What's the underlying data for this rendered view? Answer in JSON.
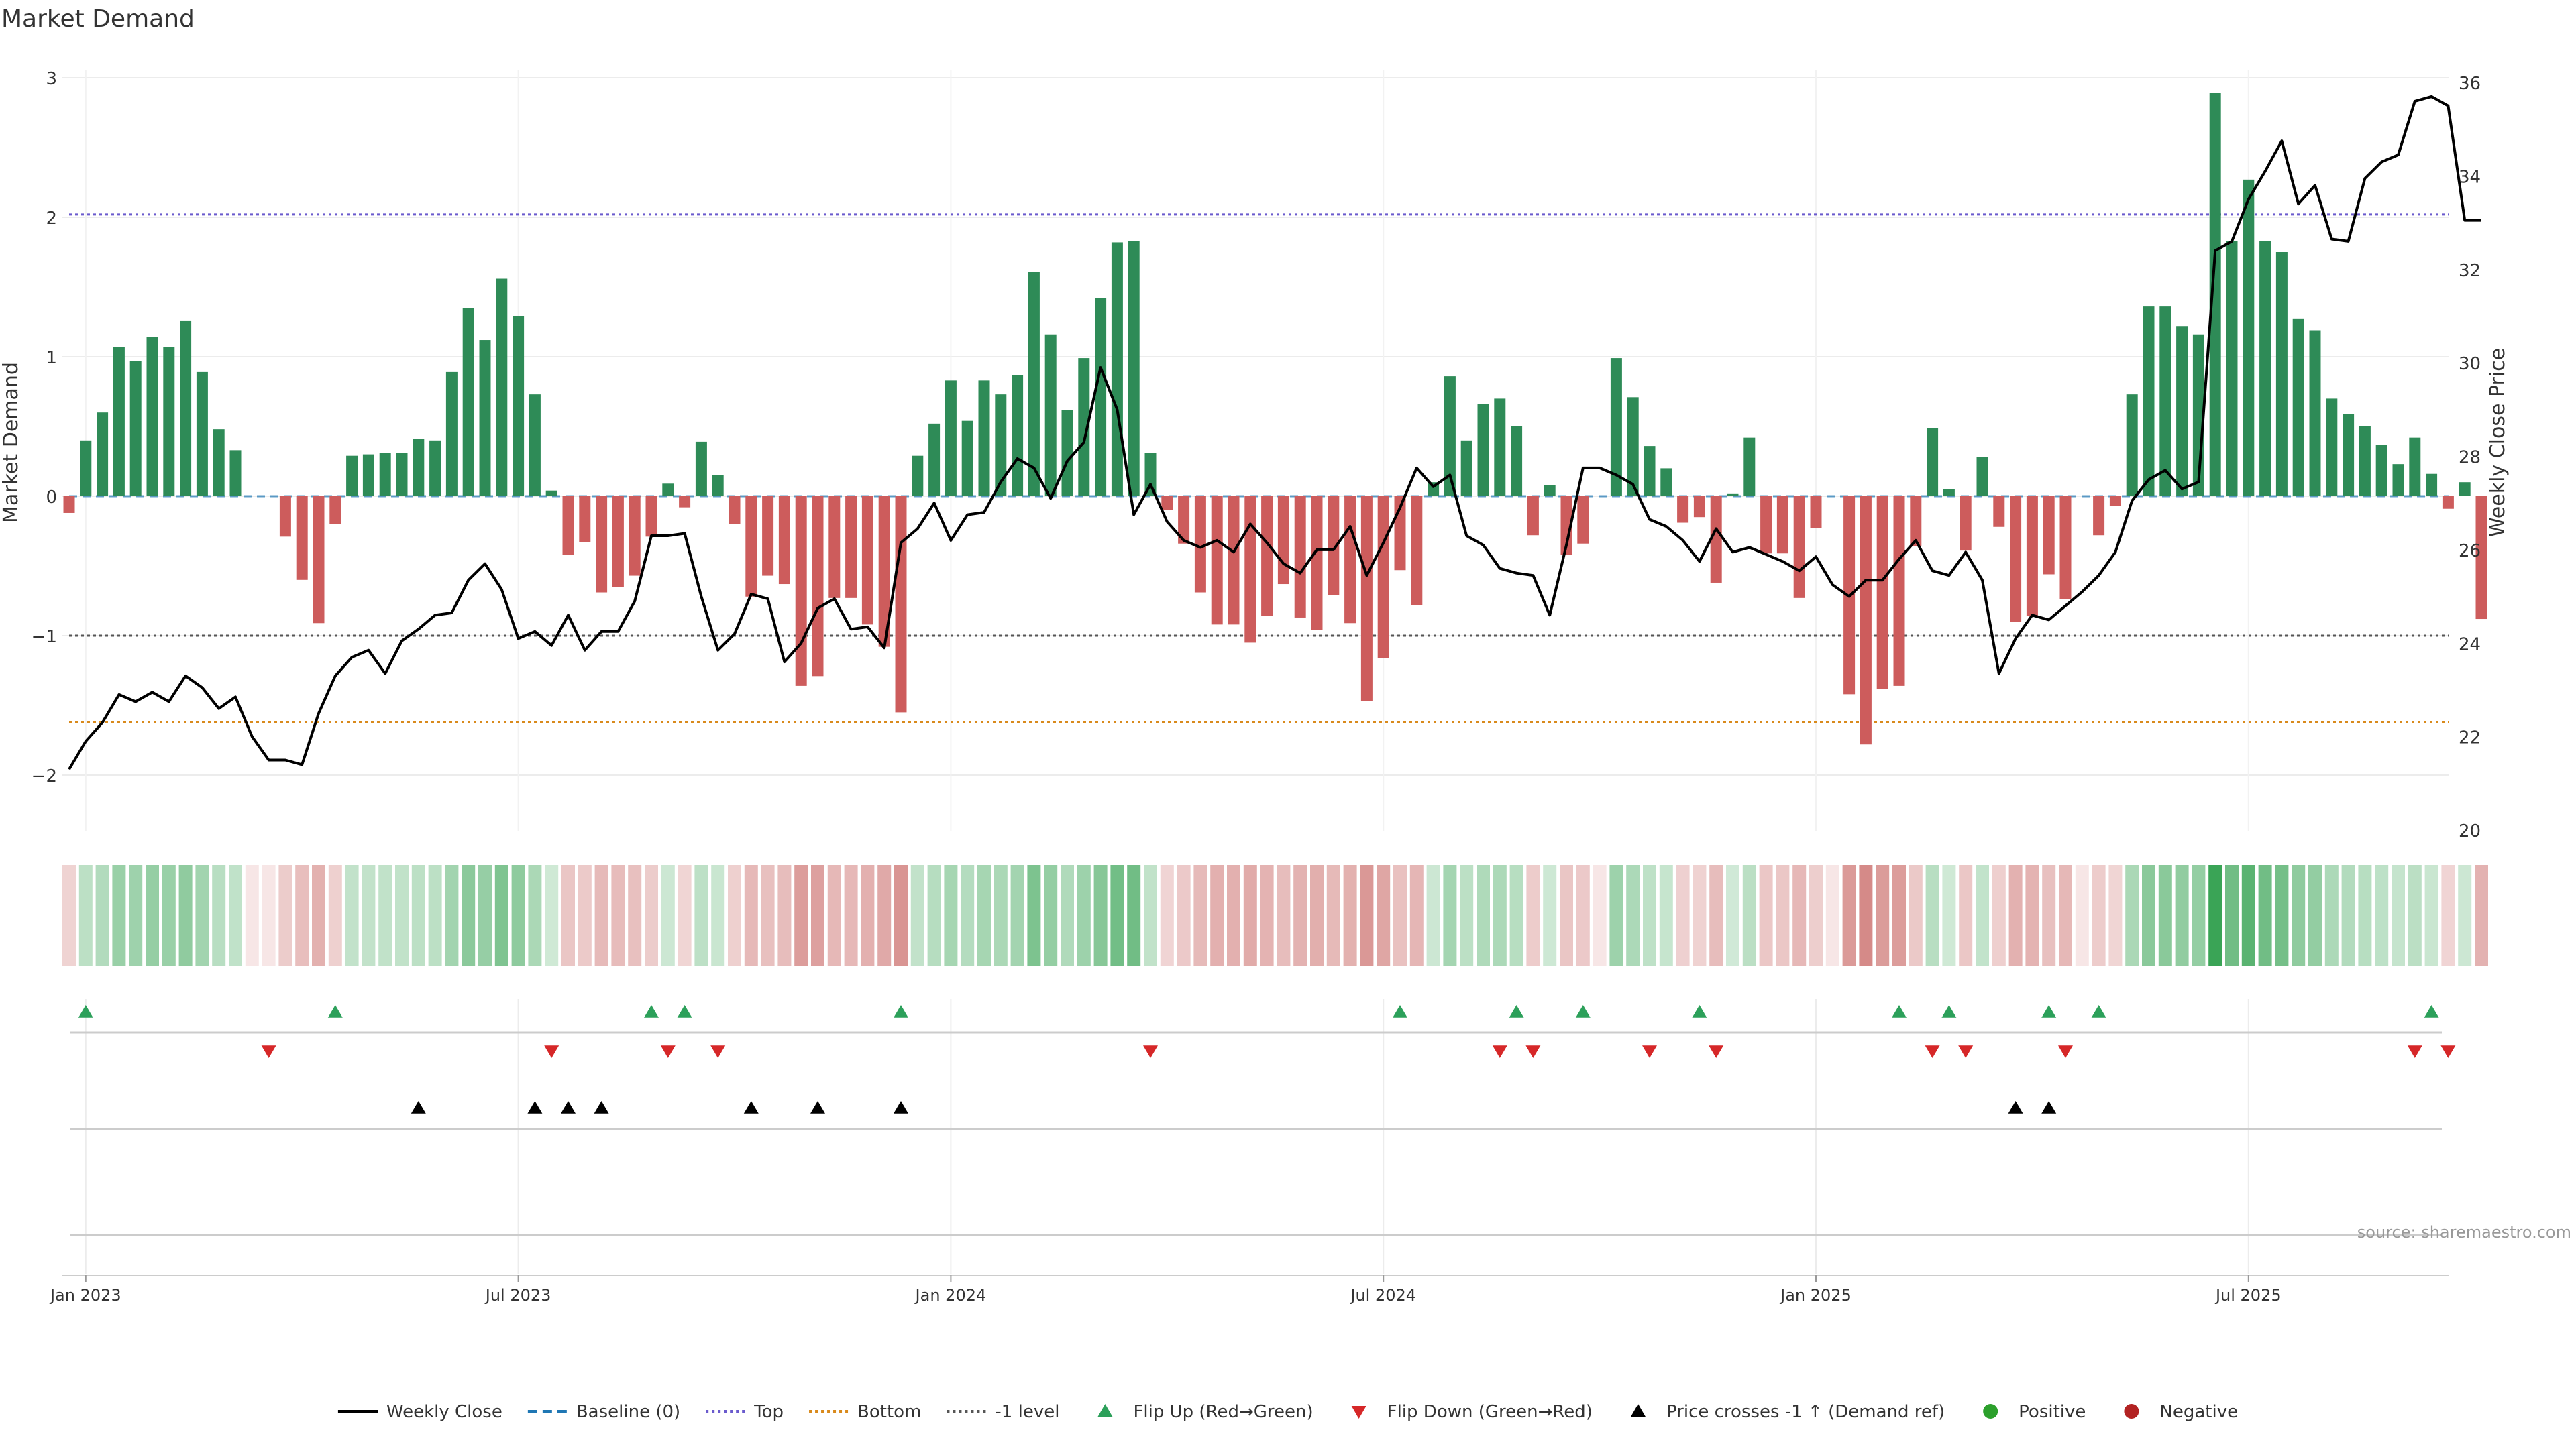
{
  "chart_data": {
    "type": "bar+line",
    "title": "Market Demand",
    "ylabel_left": "Market Demand",
    "ylabel_right": "Weekly Close Price",
    "ylim_left": [
      -2.4,
      3.0
    ],
    "ylim_right": [
      20,
      36
    ],
    "yticks_left": [
      3,
      2,
      1,
      0,
      -1,
      -2
    ],
    "yticks_left_labels": [
      "3",
      "2",
      "1",
      "0",
      "−1",
      "−2"
    ],
    "yticks_right": [
      36,
      34,
      32,
      30,
      28,
      26,
      24,
      22,
      20
    ],
    "xticks": [
      {
        "label": "Jan 2023",
        "index": 1
      },
      {
        "label": "Jul 2023",
        "index": 27
      },
      {
        "label": "Jan 2024",
        "index": 53
      },
      {
        "label": "Jul 2024",
        "index": 79
      },
      {
        "label": "Jan 2025",
        "index": 105
      },
      {
        "label": "Jul 2025",
        "index": 131
      }
    ],
    "reference_lines": {
      "top": 2.02,
      "bottom": -1.62,
      "minus_one": -1.0,
      "baseline": 0
    },
    "demand": [
      -0.12,
      0.4,
      0.6,
      1.07,
      0.97,
      1.14,
      1.07,
      1.26,
      0.89,
      0.48,
      0.33,
      0,
      0,
      -0.29,
      -0.6,
      -0.91,
      -0.2,
      0.29,
      0.3,
      0.31,
      0.31,
      0.41,
      0.4,
      0.89,
      1.35,
      1.12,
      1.56,
      1.29,
      0.73,
      0.04,
      -0.42,
      -0.33,
      -0.69,
      -0.65,
      -0.57,
      -0.29,
      0.09,
      -0.08,
      0.39,
      0.15,
      -0.2,
      -0.72,
      -0.57,
      -0.63,
      -1.36,
      -1.29,
      -0.73,
      -0.73,
      -0.92,
      -1.08,
      -1.55,
      0.29,
      0.52,
      0.83,
      0.54,
      0.83,
      0.73,
      0.87,
      1.61,
      1.16,
      0.62,
      0.99,
      1.42,
      1.82,
      1.83,
      0.31,
      -0.1,
      -0.34,
      -0.69,
      -0.92,
      -0.92,
      -1.05,
      -0.86,
      -0.63,
      -0.87,
      -0.96,
      -0.71,
      -0.91,
      -1.47,
      -1.16,
      -0.53,
      -0.78,
      0.1,
      0.86,
      0.4,
      0.66,
      0.7,
      0.5,
      -0.28,
      0.08,
      -0.42,
      -0.34,
      0,
      0.99,
      0.71,
      0.36,
      0.2,
      -0.19,
      -0.15,
      -0.62,
      0.02,
      0.42,
      -0.41,
      -0.41,
      -0.73,
      -0.23,
      0,
      -1.42,
      -1.78,
      -1.38,
      -1.36,
      -0.36,
      0.49,
      0.05,
      -0.39,
      0.28,
      -0.22,
      -0.9,
      -0.86,
      -0.56,
      -0.74,
      0,
      -0.28,
      -0.07,
      0.73,
      1.36,
      1.36,
      1.22,
      1.16,
      2.89,
      1.83,
      2.27,
      1.83,
      1.75,
      1.27,
      1.19,
      0.7,
      0.59,
      0.5,
      0.37,
      0.23,
      0.42,
      0.16,
      -0.09,
      0.1,
      -0.88
    ],
    "close": [
      21.3,
      21.9,
      22.3,
      22.9,
      22.75,
      22.95,
      22.75,
      23.3,
      23.05,
      22.6,
      22.85,
      22.0,
      21.5,
      21.5,
      21.4,
      22.5,
      23.3,
      23.7,
      23.85,
      23.35,
      24.05,
      24.3,
      24.6,
      24.65,
      25.35,
      25.7,
      25.15,
      24.1,
      24.25,
      23.95,
      24.6,
      23.85,
      24.25,
      24.25,
      24.9,
      26.3,
      26.3,
      26.35,
      25.0,
      23.85,
      24.2,
      25.05,
      24.95,
      23.6,
      24.0,
      24.75,
      24.95,
      24.3,
      24.35,
      23.9,
      26.15,
      26.45,
      27.0,
      26.2,
      26.75,
      26.8,
      27.45,
      27.95,
      27.75,
      27.1,
      27.9,
      28.3,
      29.9,
      29.0,
      26.75,
      27.4,
      26.6,
      26.2,
      26.05,
      26.2,
      25.95,
      26.55,
      26.15,
      25.7,
      25.5,
      26.0,
      26.0,
      26.5,
      25.45,
      26.15,
      26.9,
      27.75,
      27.35,
      27.6,
      26.3,
      26.1,
      25.6,
      25.5,
      25.45,
      24.6,
      26.1,
      27.75,
      27.75,
      27.6,
      27.4,
      26.65,
      26.5,
      26.2,
      25.75,
      26.45,
      25.95,
      26.05,
      25.9,
      25.75,
      25.55,
      25.85,
      25.25,
      25.0,
      25.35,
      25.35,
      25.8,
      26.2,
      25.55,
      25.45,
      25.95,
      25.35,
      23.35,
      24.1,
      24.6,
      24.5,
      24.8,
      25.1,
      25.45,
      25.95,
      27.05,
      27.5,
      27.7,
      27.3,
      27.45,
      32.4,
      32.6,
      33.5,
      34.1,
      34.75,
      33.4,
      33.8,
      32.65,
      32.6,
      33.95,
      34.3,
      34.45,
      35.6,
      35.7,
      35.5,
      33.05,
      33.05
    ],
    "flip_up_indices": [
      1,
      16,
      35,
      37,
      50,
      80,
      87,
      91,
      98,
      110,
      113,
      119,
      122,
      142
    ],
    "flip_down_indices": [
      12,
      29,
      36,
      39,
      65,
      86,
      88,
      95,
      99,
      112,
      114,
      120,
      141,
      143
    ],
    "price_cross_indices": [
      21,
      28,
      30,
      32,
      41,
      45,
      50,
      117,
      119
    ]
  },
  "title": "Market Demand",
  "source": "source: sharemaestro.com",
  "legend": [
    {
      "label": "Weekly Close",
      "kind": "line-solid",
      "color": "#000000"
    },
    {
      "label": "Baseline (0)",
      "kind": "line-dashed",
      "color": "#1f77b4"
    },
    {
      "label": "Top",
      "kind": "line-dotted",
      "color": "#6a5acd"
    },
    {
      "label": "Bottom",
      "kind": "line-dotted",
      "color": "#d98a1c"
    },
    {
      "label": "-1 level",
      "kind": "line-dotted",
      "color": "#555555"
    },
    {
      "label": "Flip Up (Red→Green)",
      "kind": "tri-up",
      "color": "#2ca05a"
    },
    {
      "label": "Flip Down (Green→Red)",
      "kind": "tri-down",
      "color": "#d62728"
    },
    {
      "label": "Price crosses -1 ↑ (Demand ref)",
      "kind": "tri-up",
      "color": "#000000"
    },
    {
      "label": "Positive",
      "kind": "dot",
      "color": "#2ca02c"
    },
    {
      "label": "Negative",
      "kind": "dot",
      "color": "#b22222"
    }
  ],
  "colors": {
    "positive_bar": "#2e8b57",
    "negative_bar": "#cd5c5c",
    "heat_pos": "#2e9e4b",
    "heat_neg": "#c0504d",
    "flip_up": "#2ca05a",
    "flip_down": "#d62728",
    "cross": "#000000",
    "top_line": "#6a5acd",
    "bottom_line": "#d98a1c",
    "minus_one_line": "#555555",
    "baseline": "#1f77b4"
  }
}
